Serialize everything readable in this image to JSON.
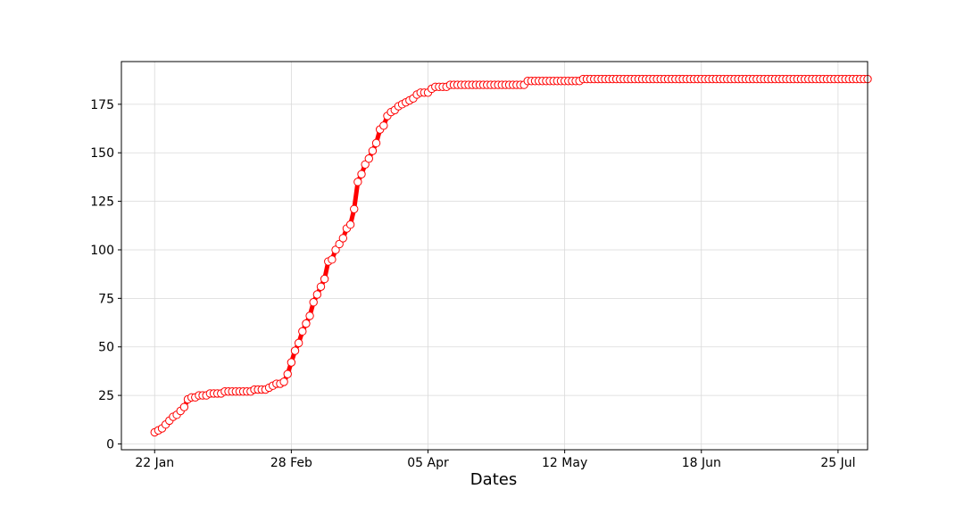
{
  "chart_data": {
    "type": "line",
    "title": "",
    "xlabel": "Dates",
    "ylabel": "",
    "x_start": "2020-01-22",
    "x_ticks": [
      {
        "date": "2020-01-22",
        "label": "22 Jan"
      },
      {
        "date": "2020-02-28",
        "label": "28 Feb"
      },
      {
        "date": "2020-04-05",
        "label": "05 Apr"
      },
      {
        "date": "2020-05-12",
        "label": "12 May"
      },
      {
        "date": "2020-06-18",
        "label": "18 Jun"
      },
      {
        "date": "2020-07-25",
        "label": "25 Jul"
      }
    ],
    "y_ticks": [
      0,
      25,
      50,
      75,
      100,
      125,
      150,
      175
    ],
    "ylim": [
      -3,
      197
    ],
    "xlim": [
      "2020-01-13",
      "2020-08-02"
    ],
    "grid": true,
    "line_color": "#ff0000",
    "marker_edge_color": "#ff0000",
    "marker_face_color": "#ffffff",
    "series": [
      {
        "values": [
          6,
          7,
          8,
          10,
          12,
          14,
          15,
          17,
          19,
          23,
          24,
          24,
          25,
          25,
          25,
          26,
          26,
          26,
          26,
          27,
          27,
          27,
          27,
          27,
          27,
          27,
          27,
          28,
          28,
          28,
          28,
          29,
          30,
          31,
          31,
          32,
          36,
          42,
          48,
          52,
          58,
          62,
          66,
          73,
          77,
          81,
          85,
          94,
          95,
          100,
          103,
          106,
          111,
          113,
          121,
          135,
          139,
          144,
          147,
          151,
          155,
          162,
          164,
          169,
          171,
          172,
          174,
          175,
          176,
          177,
          178,
          180,
          181,
          181,
          181,
          183,
          184,
          184,
          184,
          184,
          185,
          185,
          185,
          185,
          185,
          185,
          185,
          185,
          185,
          185,
          185,
          185,
          185,
          185,
          185,
          185,
          185,
          185,
          185,
          185,
          185,
          187,
          187,
          187,
          187,
          187,
          187,
          187,
          187,
          187,
          187,
          187,
          187,
          187,
          187,
          187,
          188,
          188,
          188,
          188,
          188,
          188,
          188,
          188,
          188,
          188,
          188,
          188,
          188,
          188,
          188,
          188,
          188,
          188,
          188,
          188,
          188,
          188,
          188,
          188,
          188,
          188,
          188,
          188,
          188,
          188,
          188,
          188,
          188,
          188,
          188,
          188,
          188,
          188,
          188,
          188,
          188,
          188,
          188,
          188,
          188,
          188,
          188,
          188,
          188,
          188,
          188,
          188,
          188,
          188,
          188,
          188,
          188,
          188,
          188,
          188,
          188,
          188,
          188,
          188,
          188,
          188,
          188,
          188,
          188,
          188,
          188,
          188,
          188,
          188,
          188,
          188,
          188,
          188
        ]
      }
    ]
  }
}
